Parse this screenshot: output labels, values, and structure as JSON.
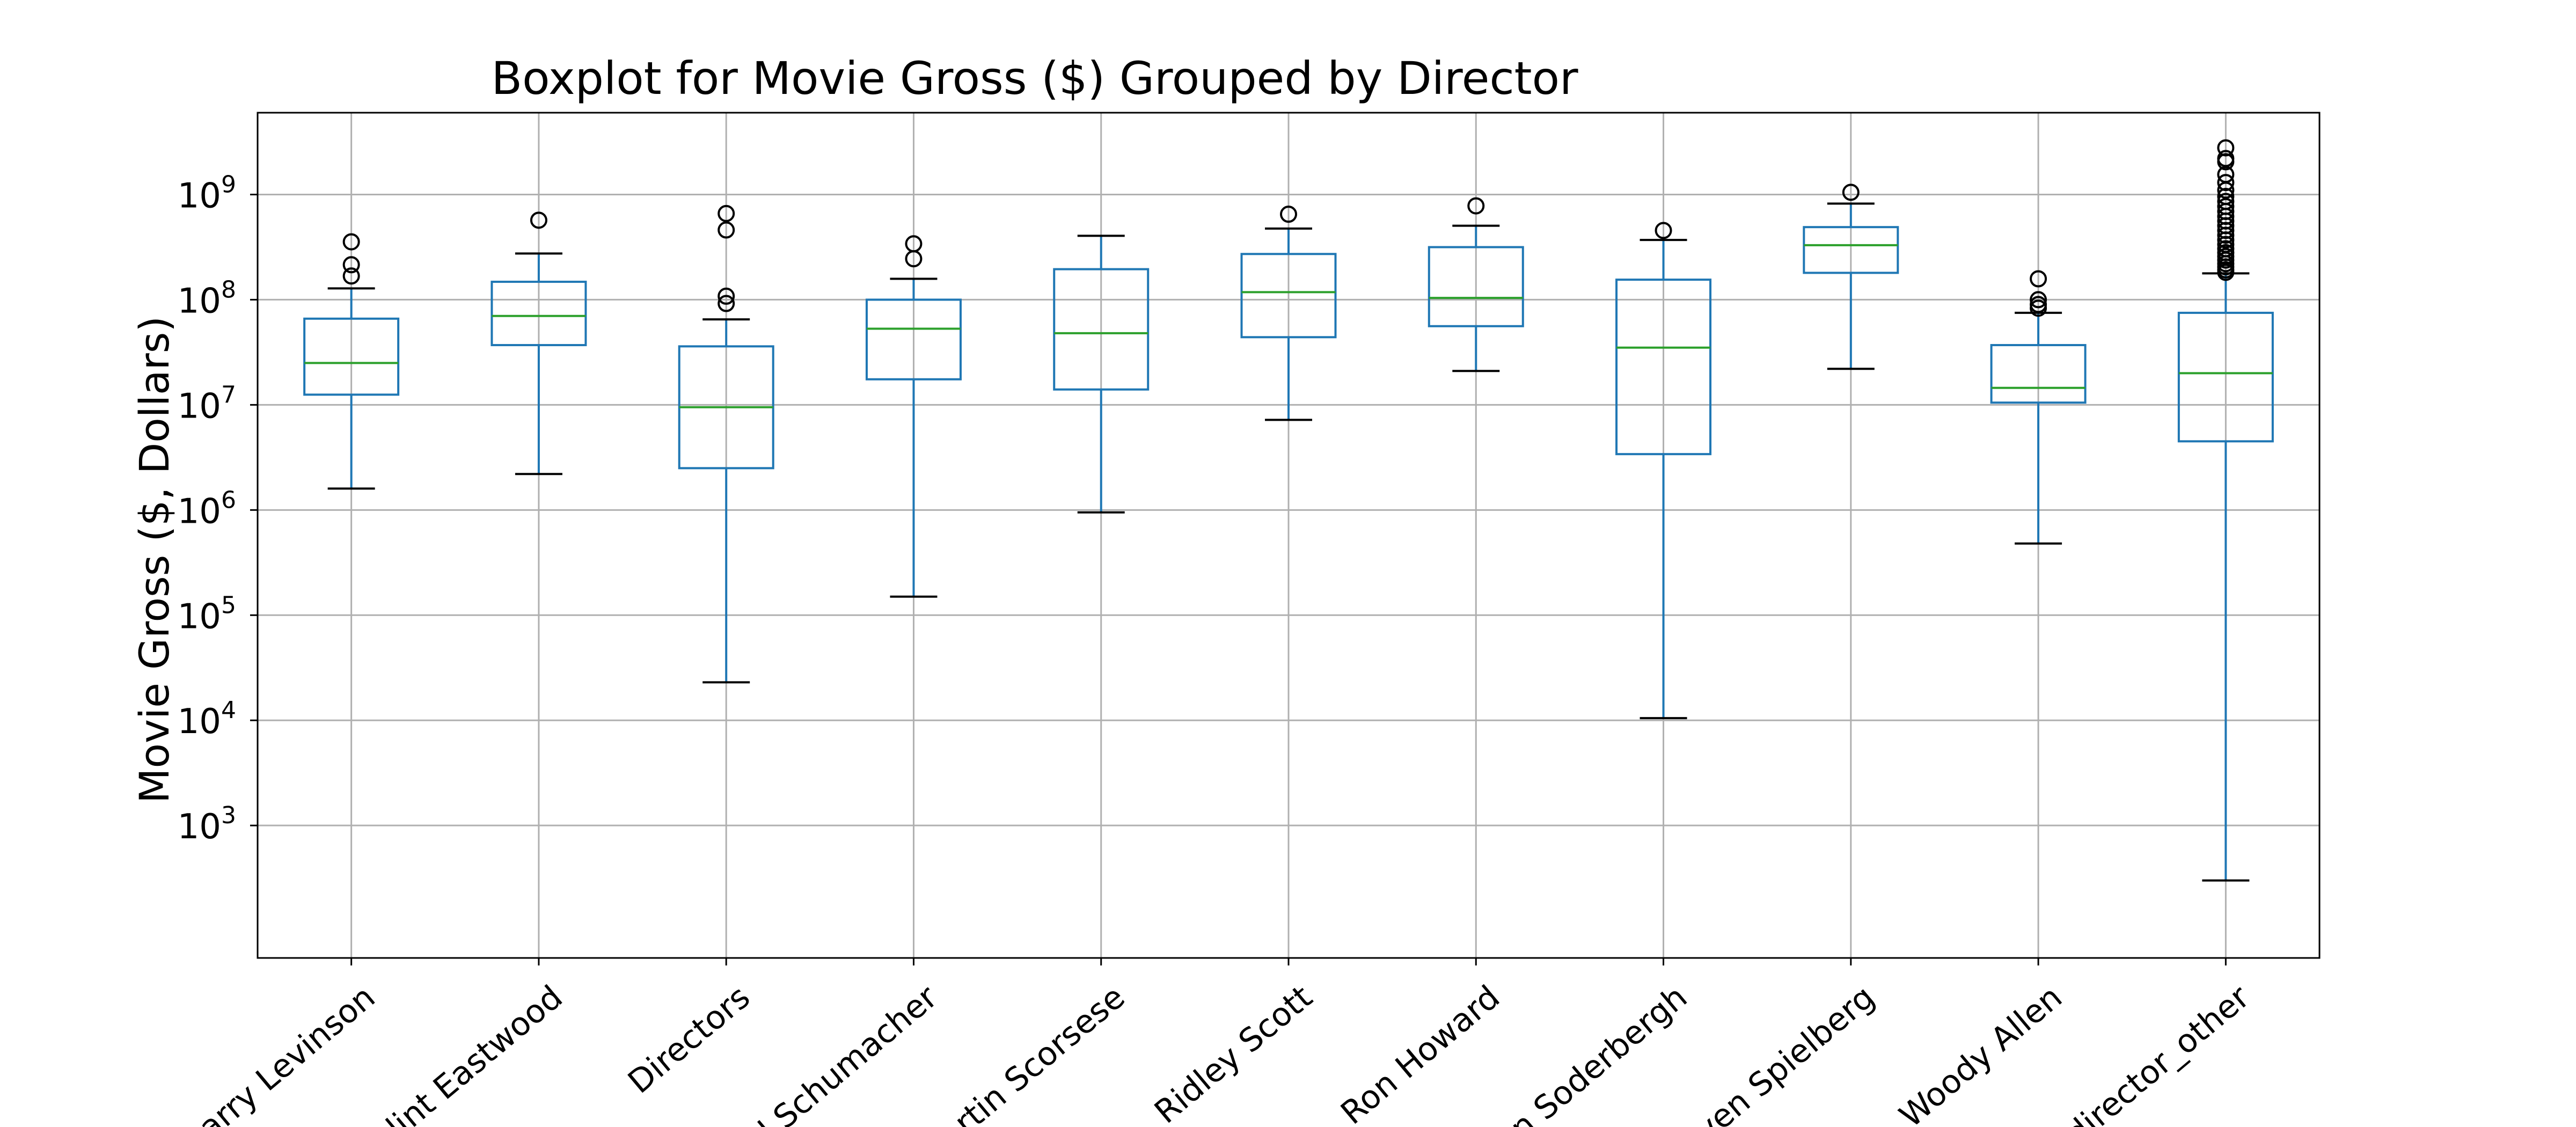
{
  "chart_data": {
    "type": "boxplot",
    "title": "Boxplot for Movie Gross ($) Grouped by Director",
    "xlabel": "",
    "ylabel": "Movie Gross ($, Dollars)",
    "yscale": "log",
    "ylim": [
      55,
      6000000000
    ],
    "yticks": [
      {
        "value": 1000,
        "base": "10",
        "exp": "3"
      },
      {
        "value": 10000,
        "base": "10",
        "exp": "4"
      },
      {
        "value": 100000,
        "base": "10",
        "exp": "5"
      },
      {
        "value": 1000000,
        "base": "10",
        "exp": "6"
      },
      {
        "value": 10000000,
        "base": "10",
        "exp": "7"
      },
      {
        "value": 100000000,
        "base": "10",
        "exp": "8"
      },
      {
        "value": 1000000000,
        "base": "10",
        "exp": "9"
      }
    ],
    "grid": true,
    "colors": {
      "box": "#1f77b4",
      "median": "#2ca02c",
      "whisker_cap": "#000000",
      "grid": "#b0b0b0",
      "axes": "#000000"
    },
    "categories": [
      {
        "label": "arry Levinson",
        "whislo": 1600000,
        "q1": 12500000,
        "med": 25000000,
        "q3": 66000000,
        "whishi": 128000000,
        "fliers": [
          168000000,
          215000000,
          355000000
        ]
      },
      {
        "label": "lint Eastwood",
        "whislo": 2200000,
        "q1": 37000000,
        "med": 70000000,
        "q3": 148000000,
        "whishi": 275000000,
        "fliers": [
          570000000
        ]
      },
      {
        "label": "Directors",
        "whislo": 23000,
        "q1": 2500000,
        "med": 9500000,
        "q3": 36000000,
        "whishi": 65000000,
        "fliers": [
          92000000,
          108000000,
          460000000,
          660000000
        ]
      },
      {
        "label": "l Schumacher",
        "whislo": 150000,
        "q1": 17500000,
        "med": 53000000,
        "q3": 100000000,
        "whishi": 158000000,
        "fliers": [
          245000000,
          340000000
        ]
      },
      {
        "label": "rtin Scorsese",
        "whislo": 950000,
        "q1": 14000000,
        "med": 48000000,
        "q3": 195000000,
        "whishi": 405000000,
        "fliers": []
      },
      {
        "label": "Ridley Scott",
        "whislo": 7200000,
        "q1": 44000000,
        "med": 118000000,
        "q3": 272000000,
        "whishi": 475000000,
        "fliers": [
          650000000
        ]
      },
      {
        "label": "Ron Howard",
        "whislo": 21000000,
        "q1": 56000000,
        "med": 104000000,
        "q3": 316000000,
        "whishi": 505000000,
        "fliers": [
          780000000
        ]
      },
      {
        "label": "n Soderbergh",
        "whislo": 10500,
        "q1": 3400000,
        "med": 35000000,
        "q3": 155000000,
        "whishi": 370000000,
        "fliers": [
          455000000
        ]
      },
      {
        "label": "ven Spielberg",
        "whislo": 22000000,
        "q1": 180000000,
        "med": 330000000,
        "q3": 490000000,
        "whishi": 820000000,
        "fliers": [
          1050000000
        ]
      },
      {
        "label": "Woody Allen",
        "whislo": 480000,
        "q1": 10500000,
        "med": 14500000,
        "q3": 37000000,
        "whishi": 75000000,
        "fliers": [
          83000000,
          90000000,
          100000000,
          158000000
        ]
      },
      {
        "label": "director_other",
        "whislo": 300,
        "q1": 4500000,
        "med": 20000000,
        "q3": 75000000,
        "whishi": 178000000,
        "fliers": [
          182000000,
          192000000,
          205000000,
          220000000,
          238000000,
          258000000,
          280000000,
          305000000,
          335000000,
          370000000,
          410000000,
          455000000,
          505000000,
          560000000,
          620000000,
          690000000,
          770000000,
          860000000,
          960000000,
          1100000000,
          1300000000,
          1550000000,
          2050000000,
          2200000000,
          2780000000
        ]
      }
    ]
  }
}
